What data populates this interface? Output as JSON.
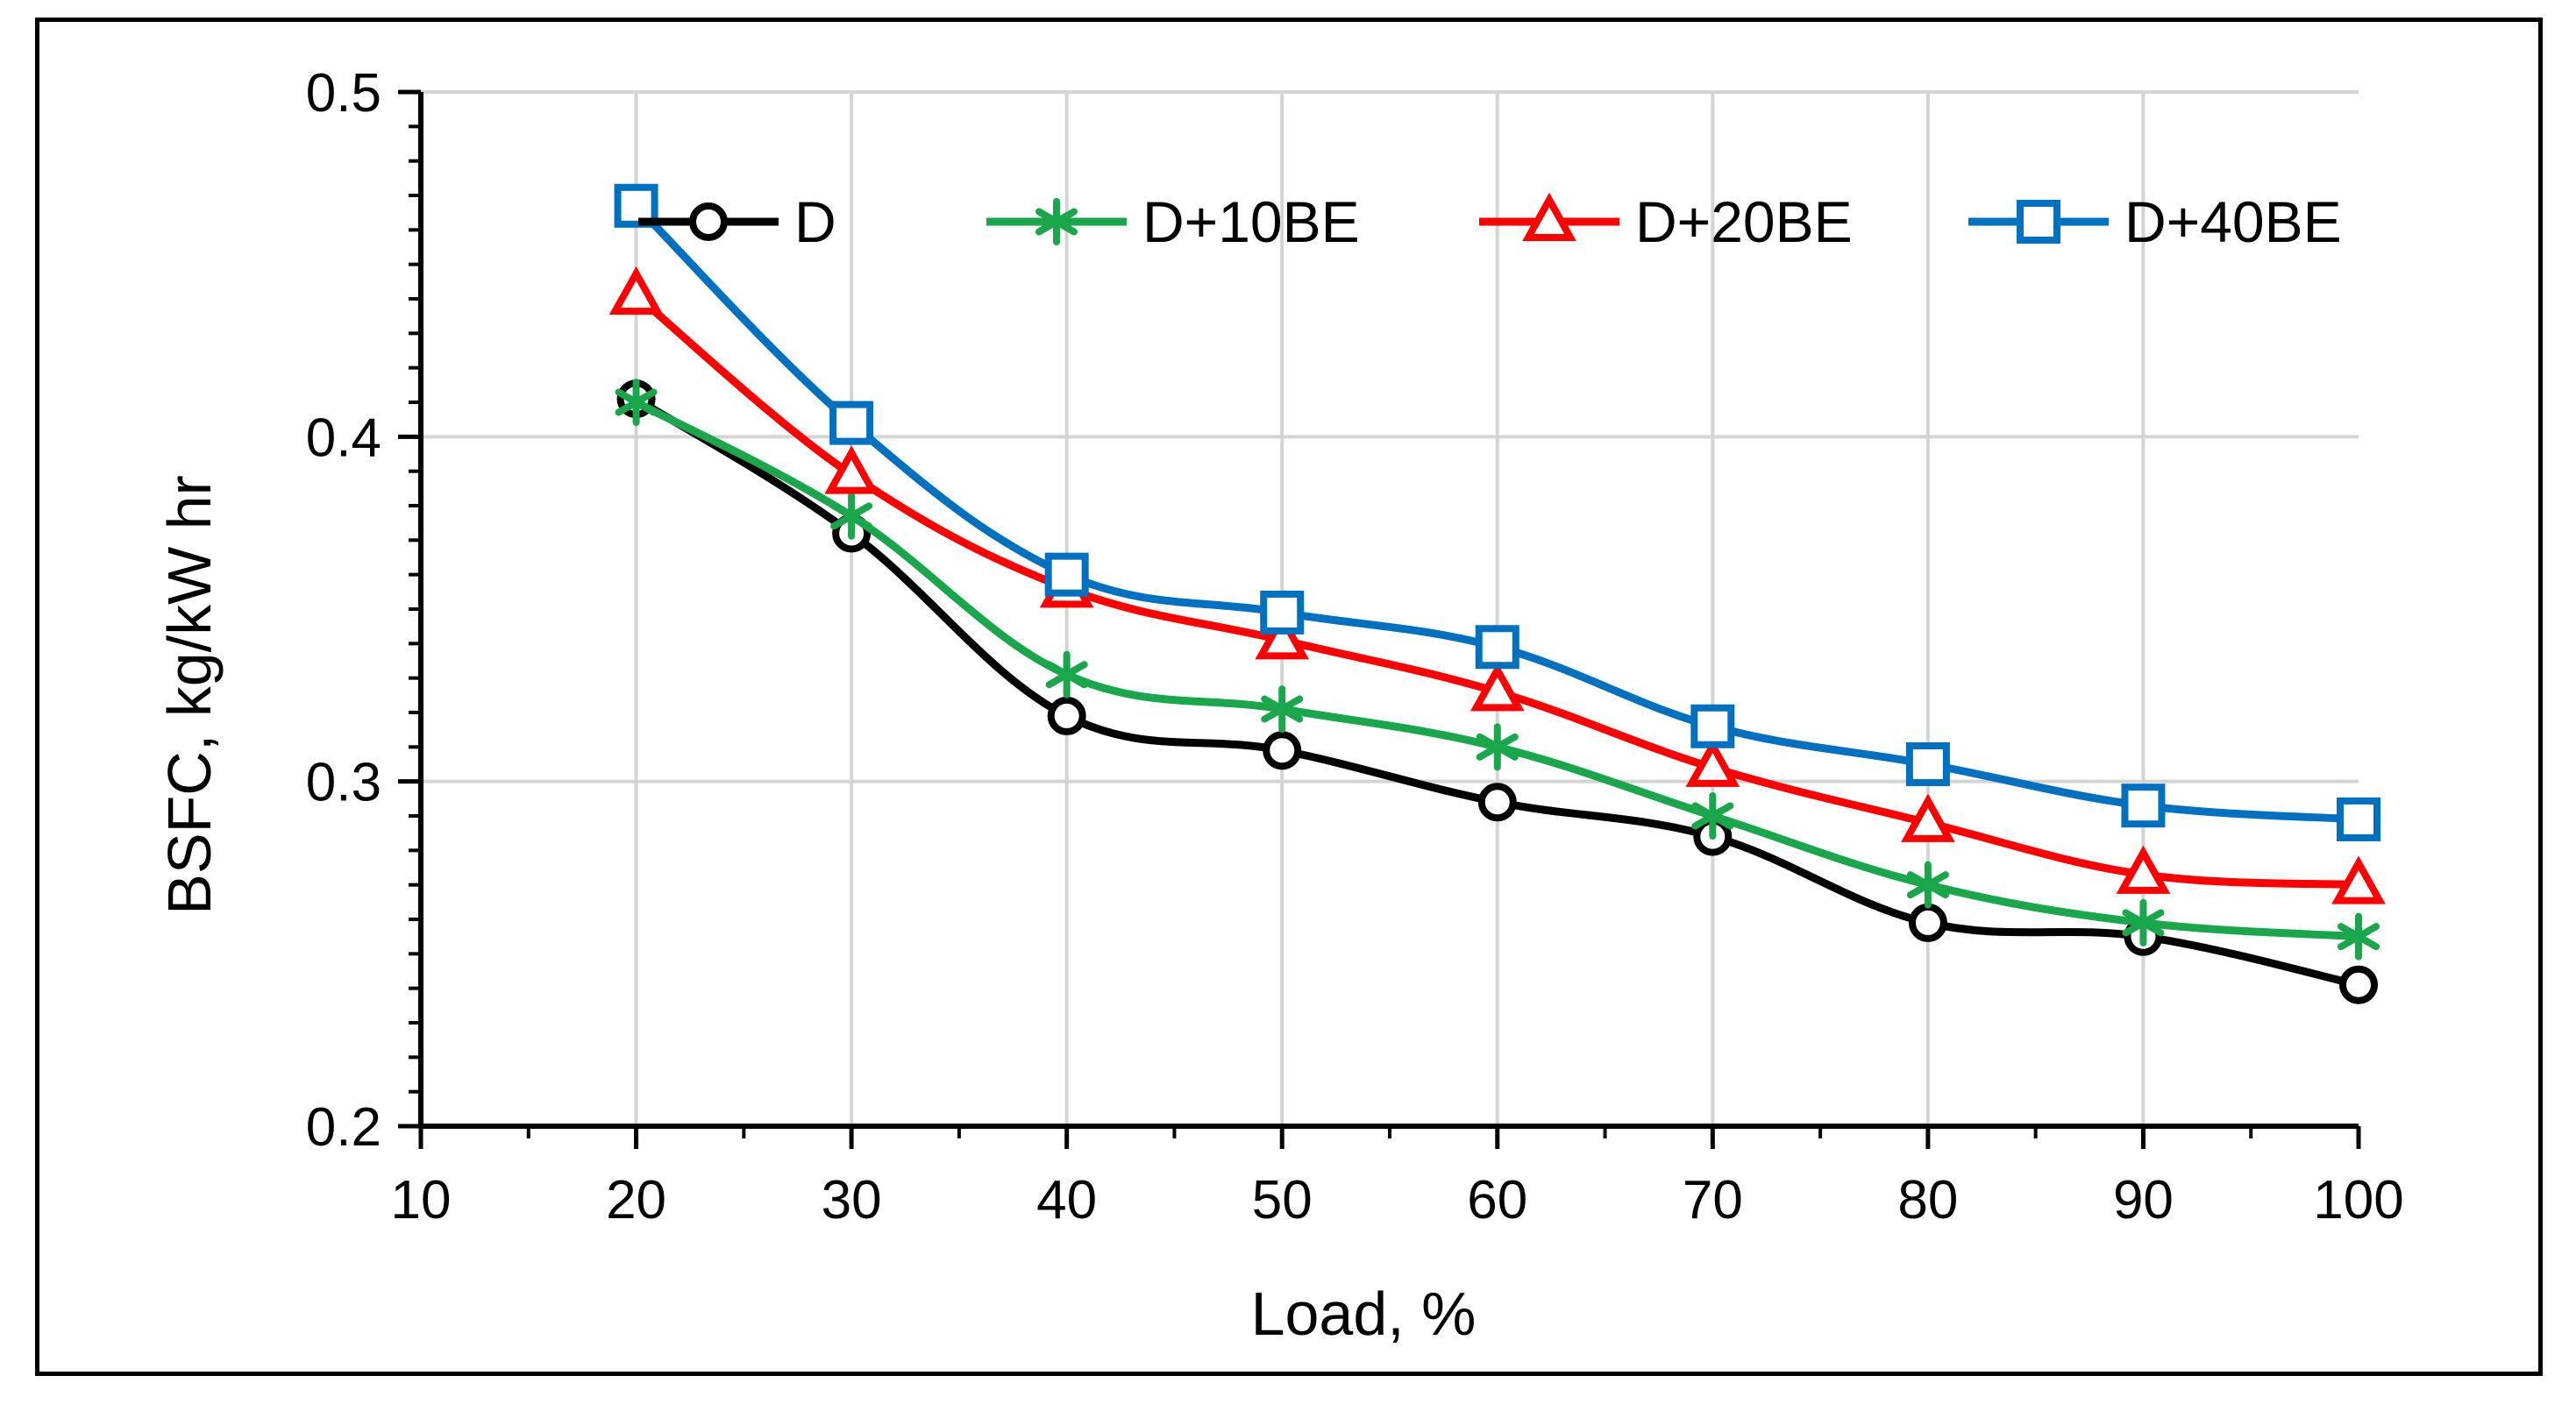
{
  "chart_data": {
    "type": "line",
    "title": "",
    "xlabel": "Load, %",
    "ylabel": "BSFC,  kg/kW hr",
    "xlim": [
      10,
      100
    ],
    "ylim": [
      0.2,
      0.5
    ],
    "xticks": [
      10,
      20,
      30,
      40,
      50,
      60,
      70,
      80,
      90,
      100
    ],
    "yticks": [
      0.2,
      0.3,
      0.4,
      0.5
    ],
    "xtick_labels": [
      "10",
      "20",
      "30",
      "40",
      "50",
      "60",
      "70",
      "80",
      "90",
      "100"
    ],
    "ytick_labels": [
      "0.2",
      "0.3",
      "0.4",
      "0.5"
    ],
    "grid": true,
    "legend_position": "top",
    "x": [
      20,
      30,
      40,
      50,
      60,
      70,
      80,
      90,
      100
    ],
    "series": [
      {
        "name": "D",
        "color": "#000000",
        "marker": "circle",
        "values": [
          0.411,
          0.372,
          0.319,
          0.309,
          0.294,
          0.284,
          0.259,
          0.255,
          0.241
        ]
      },
      {
        "name": "D+10BE",
        "color": "#1aa64a",
        "marker": "asterisk",
        "values": [
          0.41,
          0.377,
          0.331,
          0.321,
          0.31,
          0.29,
          0.27,
          0.259,
          0.255
        ]
      },
      {
        "name": "D+20BE",
        "color": "#ff0000",
        "marker": "triangle",
        "values": [
          0.441,
          0.389,
          0.356,
          0.341,
          0.326,
          0.304,
          0.288,
          0.273,
          0.27
        ]
      },
      {
        "name": "D+40BE",
        "color": "#0070c0",
        "marker": "square",
        "values": [
          0.467,
          0.404,
          0.36,
          0.349,
          0.339,
          0.316,
          0.305,
          0.293,
          0.289
        ]
      }
    ]
  }
}
